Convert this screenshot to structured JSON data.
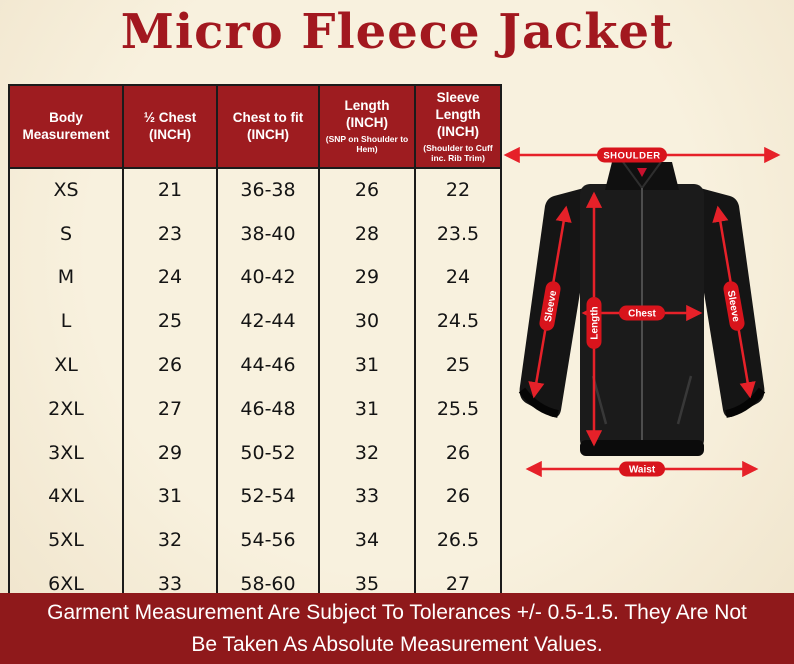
{
  "page": {
    "title": "Micro Fleece Jacket",
    "background_color": "#f6edd9",
    "accent_color": "#9e1c20"
  },
  "table": {
    "headers": [
      {
        "title": "Body Measurement",
        "sub": ""
      },
      {
        "title": "½ Chest (INCH)",
        "sub": ""
      },
      {
        "title": "Chest to fit (INCH)",
        "sub": ""
      },
      {
        "title": "Length (INCH)",
        "sub": "(SNP on Shoulder to Hem)"
      },
      {
        "title": "Sleeve Length (INCH)",
        "sub": "(Shoulder to Cuff inc. Rib Trim)"
      }
    ],
    "rows": [
      [
        "XS",
        "21",
        "36-38",
        "26",
        "22"
      ],
      [
        "S",
        "23",
        "38-40",
        "28",
        "23.5"
      ],
      [
        "M",
        "24",
        "40-42",
        "29",
        "24"
      ],
      [
        "L",
        "25",
        "42-44",
        "30",
        "24.5"
      ],
      [
        "XL",
        "26",
        "44-46",
        "31",
        "25"
      ],
      [
        "2XL",
        "27",
        "46-48",
        "31",
        "25.5"
      ],
      [
        "3XL",
        "29",
        "50-52",
        "32",
        "26"
      ],
      [
        "4XL",
        "31",
        "52-54",
        "33",
        "26"
      ],
      [
        "5XL",
        "32",
        "54-56",
        "34",
        "26.5"
      ],
      [
        "6XL",
        "33",
        "58-60",
        "35",
        "27"
      ]
    ]
  },
  "jacket": {
    "labels": {
      "shoulder": "SHOULDER",
      "chest": "Chest",
      "length": "Length",
      "sleeve_left": "Sleeve",
      "sleeve_right": "Sleeve",
      "waist": "Waist"
    },
    "arrow_color": "#e62129",
    "label_bg": "#d8141c"
  },
  "banner": {
    "line1": "Garment Measurement Are Subject To Tolerances +/- 0.5-1.5. They Are Not",
    "line2": "Be Taken As Absolute Measurement Values."
  },
  "chart_data": {
    "type": "table",
    "title": "Micro Fleece Jacket",
    "columns": [
      "Body Measurement",
      "½ Chest (INCH)",
      "Chest to fit (INCH)",
      "Length (INCH) (SNP on Shoulder to Hem)",
      "Sleeve Length (INCH) (Shoulder to Cuff inc. Rib Trim)"
    ],
    "rows": [
      [
        "XS",
        21,
        "36-38",
        26,
        22
      ],
      [
        "S",
        23,
        "38-40",
        28,
        23.5
      ],
      [
        "M",
        24,
        "40-42",
        29,
        24
      ],
      [
        "L",
        25,
        "42-44",
        30,
        24.5
      ],
      [
        "XL",
        26,
        "44-46",
        31,
        25
      ],
      [
        "2XL",
        27,
        "46-48",
        31,
        25.5
      ],
      [
        "3XL",
        29,
        "50-52",
        32,
        26
      ],
      [
        "4XL",
        31,
        "52-54",
        33,
        26
      ],
      [
        "5XL",
        32,
        "54-56",
        34,
        26.5
      ],
      [
        "6XL",
        33,
        "58-60",
        35,
        27
      ]
    ],
    "footnote": "Garment Measurement Are Subject To Tolerances +/- 0.5-1.5. They Are Not Be Taken As Absolute Measurement Values."
  }
}
